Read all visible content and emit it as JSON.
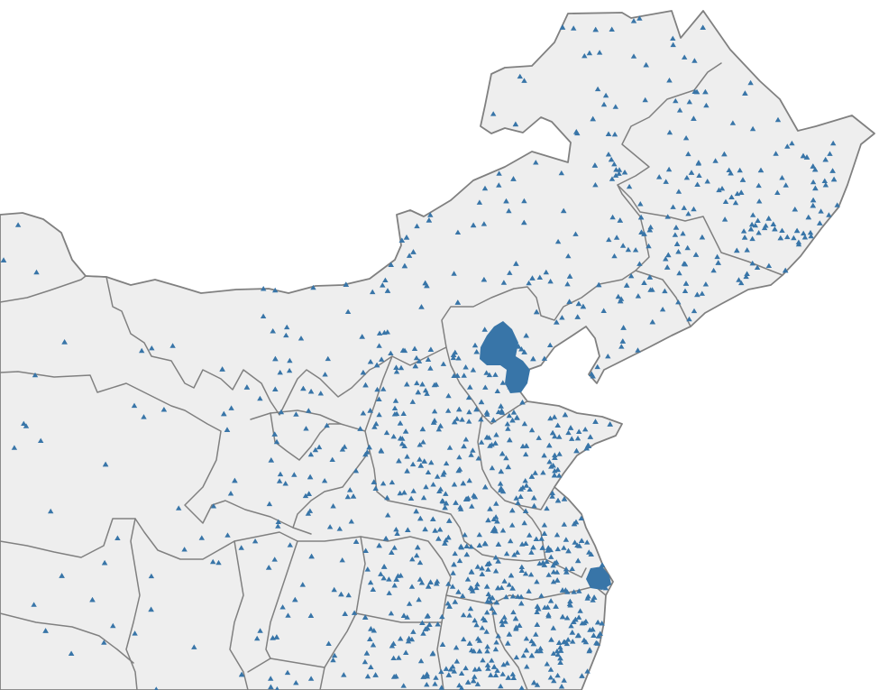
{
  "map": {
    "kind": "point-distribution map",
    "base_fill": "#eeeeee",
    "boundary_color": "#808080",
    "marker": {
      "shape": "triangle",
      "icon": "triangle-marker-icon",
      "color": "#3875a8"
    },
    "dense_clusters": [
      "north-cluster",
      "east-coast-cluster"
    ]
  }
}
